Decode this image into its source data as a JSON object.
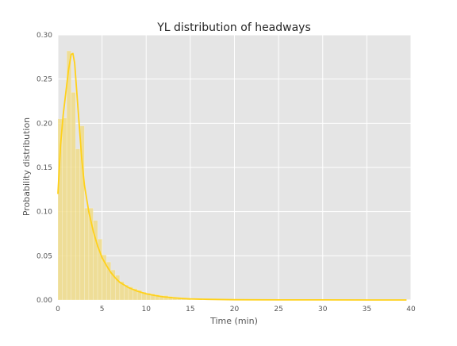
{
  "chart_data": {
    "type": "bar",
    "title": "YL distribution of headways",
    "xlabel": "Time (min)",
    "ylabel": "Probability distribution",
    "xlim": [
      0,
      40
    ],
    "ylim": [
      0,
      0.3
    ],
    "xticks": [
      "0",
      "5",
      "10",
      "15",
      "20",
      "25",
      "30",
      "35",
      "40"
    ],
    "yticks": [
      "0.00",
      "0.05",
      "0.10",
      "0.15",
      "0.20",
      "0.25",
      "0.30"
    ],
    "xtick_values": [
      0,
      5,
      10,
      15,
      20,
      25,
      30,
      35,
      40
    ],
    "ytick_values": [
      0,
      0.05,
      0.1,
      0.15,
      0.2,
      0.25,
      0.3
    ],
    "grid": true,
    "background_color": "#e5e5e5",
    "series_color": "#ffd11a",
    "bar_color": "#f0dc8a",
    "histogram": {
      "bin_width": 0.5,
      "bin_starts": [
        0,
        0.5,
        1.0,
        1.5,
        2.0,
        2.5,
        3.0,
        3.5,
        4.0,
        4.5,
        5.0,
        5.5,
        6.0,
        6.5,
        7.0,
        7.5,
        8.0,
        8.5,
        9.0,
        9.5,
        10.0,
        10.5,
        11.0,
        11.5,
        12.0,
        12.5,
        13.0,
        13.5,
        14.0,
        14.5
      ],
      "values": [
        0.205,
        0.206,
        0.282,
        0.235,
        0.171,
        0.197,
        0.104,
        0.104,
        0.09,
        0.069,
        0.051,
        0.043,
        0.034,
        0.028,
        0.021,
        0.017,
        0.015,
        0.013,
        0.011,
        0.009,
        0.008,
        0.007,
        0.006,
        0.005,
        0.005,
        0.004,
        0.003,
        0.003,
        0.002,
        0.002
      ]
    },
    "kde": {
      "x": [
        0,
        0.3,
        0.6,
        0.9,
        1.2,
        1.5,
        1.7,
        1.9,
        2.1,
        2.4,
        2.7,
        3.0,
        3.5,
        4.0,
        4.5,
        5.0,
        5.5,
        6.0,
        6.5,
        7.0,
        8.0,
        9.0,
        10.0,
        11.0,
        12.0,
        13.0,
        14.0,
        15.0,
        17.0,
        20.0,
        25.0,
        30.0,
        35.0,
        39.5
      ],
      "y": [
        0.12,
        0.175,
        0.21,
        0.235,
        0.26,
        0.278,
        0.279,
        0.268,
        0.24,
        0.2,
        0.16,
        0.13,
        0.1,
        0.078,
        0.061,
        0.048,
        0.039,
        0.031,
        0.025,
        0.02,
        0.014,
        0.01,
        0.007,
        0.005,
        0.0035,
        0.0025,
        0.0018,
        0.0012,
        0.0007,
        0.0003,
        0.0001,
        5e-05,
        2e-05,
        0.0
      ]
    }
  }
}
